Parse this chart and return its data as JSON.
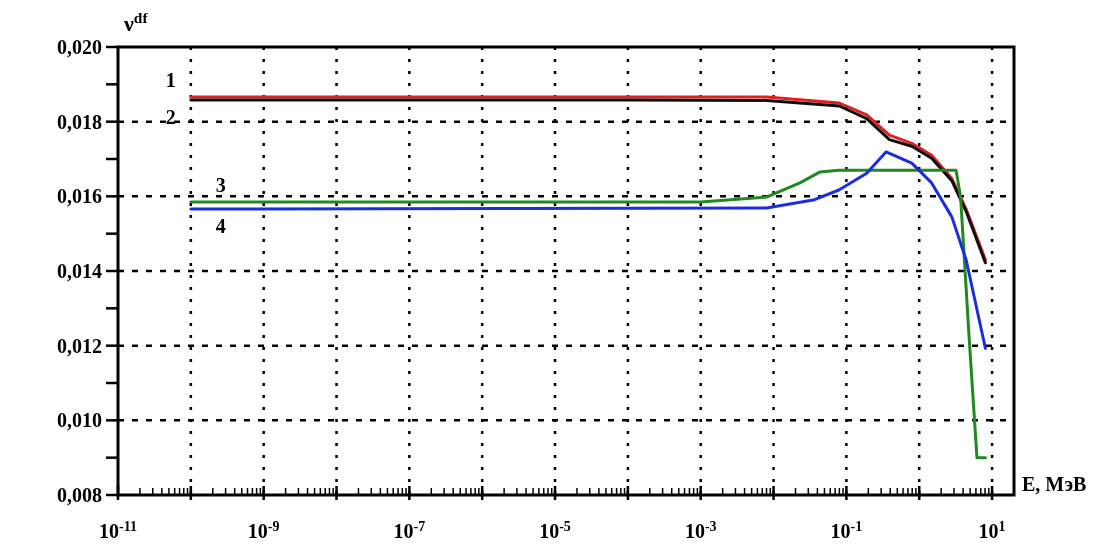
{
  "chart_data": {
    "type": "line",
    "ylabel": "ν$^{df}$",
    "xlabel": "E, МэВ",
    "log": "x",
    "grid": true,
    "line_style": "solid",
    "marker": "none",
    "xlim": [
      1e-11,
      20
    ],
    "xticks": [
      {
        "value": 1e-11,
        "label": "10$^{-11}$"
      },
      {
        "value": 1e-10,
        "label": null
      },
      {
        "value": 1e-09,
        "label": "10$^{-9}$"
      },
      {
        "value": 1e-08,
        "label": null
      },
      {
        "value": 1e-07,
        "label": "10$^{-7}$"
      },
      {
        "value": 1e-06,
        "label": null
      },
      {
        "value": 1e-05,
        "label": "10$^{-5}$"
      },
      {
        "value": 0.0001,
        "label": null
      },
      {
        "value": 0.001,
        "label": "10$^{-3}$"
      },
      {
        "value": 0.01,
        "label": null
      },
      {
        "value": 0.1,
        "label": "10$^{-1}$"
      },
      {
        "value": 1,
        "label": null
      },
      {
        "value": 10,
        "label": "10$^{1}$"
      }
    ],
    "ylim": [
      0.008,
      0.02
    ],
    "yticks": [
      {
        "value": 0.008,
        "label": "0,008"
      },
      {
        "value": 0.009,
        "label": null
      },
      {
        "value": 0.01,
        "label": "0,010"
      },
      {
        "value": 0.011,
        "label": null
      },
      {
        "value": 0.012,
        "label": "0,012"
      },
      {
        "value": 0.013,
        "label": null
      },
      {
        "value": 0.014,
        "label": "0,014"
      },
      {
        "value": 0.015,
        "label": null
      },
      {
        "value": 0.016,
        "label": "0,016"
      },
      {
        "value": 0.017,
        "label": null
      },
      {
        "value": 0.018,
        "label": "0,018"
      },
      {
        "value": 0.019,
        "label": null
      },
      {
        "value": 0.02,
        "label": "0,020"
      }
    ],
    "series": [
      {
        "name": "1",
        "color": "#e02020",
        "x": [
          1e-10,
          0.0001,
          0.008,
          0.08,
          0.19,
          0.39,
          0.79,
          1.48,
          2.8,
          4.4,
          8.1
        ],
        "values": [
          0.01866,
          0.01866,
          0.01866,
          0.0185,
          0.01818,
          0.01764,
          0.01742,
          0.0171,
          0.01648,
          0.01566,
          0.0143
        ]
      },
      {
        "name": "2",
        "color": "#101010",
        "x": [
          1e-10,
          0.0001,
          0.008,
          0.08,
          0.19,
          0.39,
          0.79,
          1.48,
          2.8,
          4.4,
          8.1
        ],
        "values": [
          0.01858,
          0.01858,
          0.01857,
          0.01842,
          0.01808,
          0.01752,
          0.01734,
          0.01702,
          0.01642,
          0.0156,
          0.01422
        ]
      },
      {
        "name": "3",
        "color": "#208a20",
        "x": [
          1e-10,
          0.001,
          0.008,
          0.023,
          0.043,
          0.079,
          3.2,
          3.7,
          4.8,
          6.2,
          8.1
        ],
        "values": [
          0.01585,
          0.01585,
          0.01598,
          0.01636,
          0.01665,
          0.0167,
          0.0167,
          0.01598,
          0.01233,
          0.009,
          0.009
        ]
      },
      {
        "name": "4",
        "color": "#1a2ee0",
        "x": [
          1e-10,
          0.008,
          0.035,
          0.079,
          0.19,
          0.35,
          0.79,
          1.48,
          2.8,
          4.4,
          8.1
        ],
        "values": [
          0.01566,
          0.01569,
          0.0159,
          0.01617,
          0.01662,
          0.01719,
          0.01689,
          0.01636,
          0.01545,
          0.0143,
          0.01193
        ]
      }
    ]
  }
}
